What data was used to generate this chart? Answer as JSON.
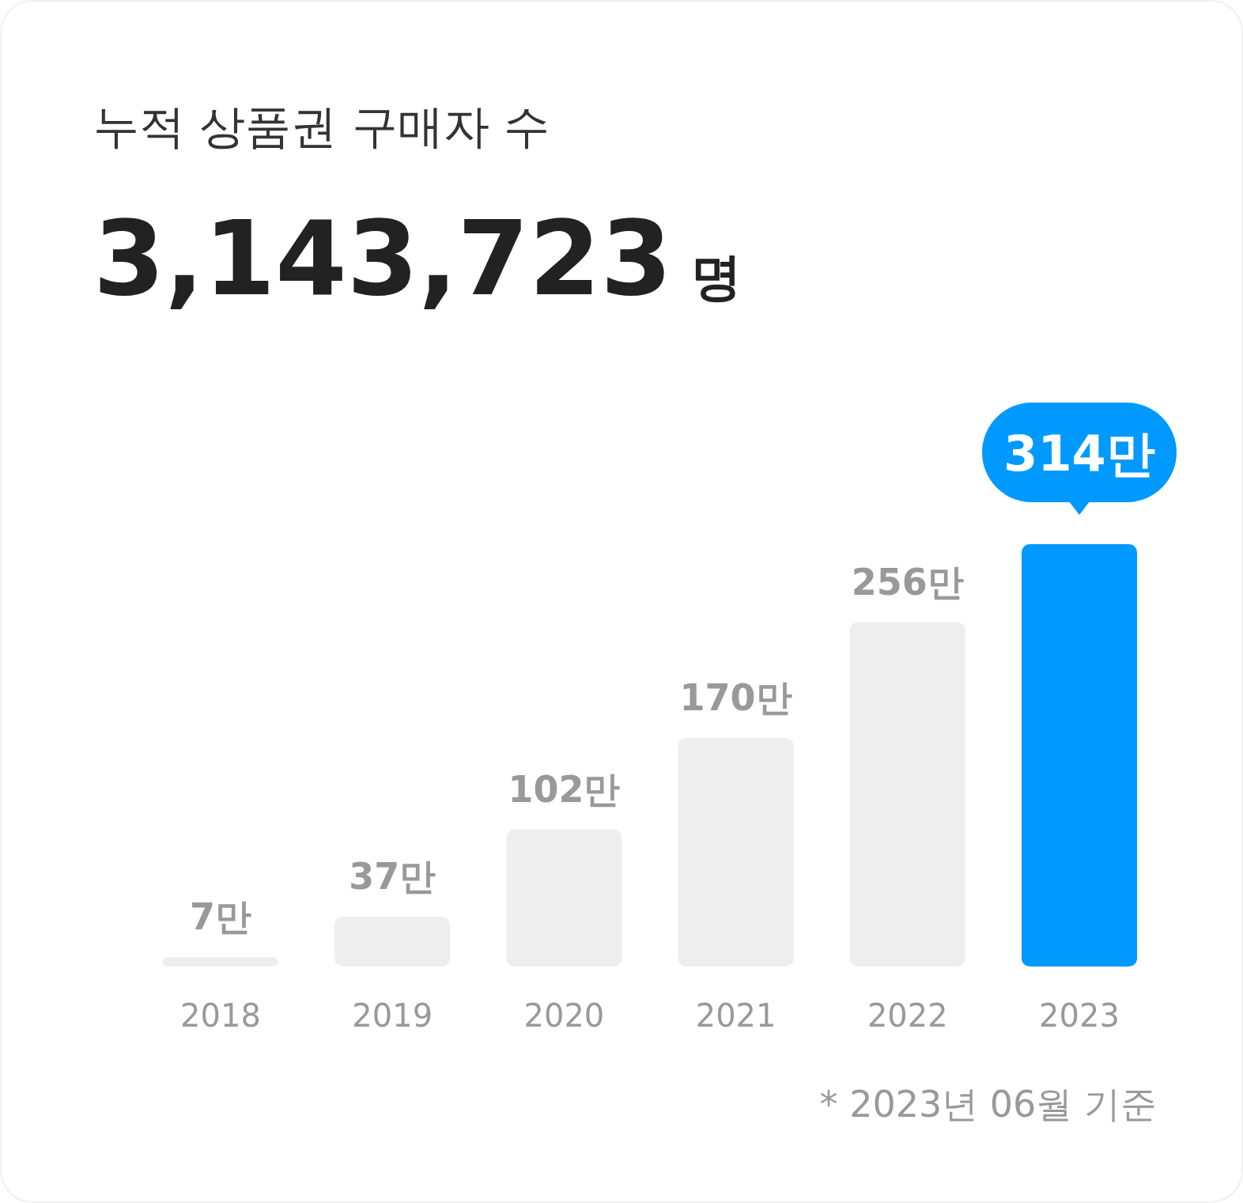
{
  "chart_data": {
    "type": "bar",
    "title": "누적 상품권 구매자 수",
    "subtitle": "3,143,723 명",
    "categories": [
      "2018",
      "2019",
      "2020",
      "2021",
      "2022",
      "2023"
    ],
    "values": [
      7,
      37,
      102,
      170,
      256,
      314
    ],
    "value_labels": [
      "7만",
      "37만",
      "102만",
      "170만",
      "256만",
      "314만"
    ],
    "colors": [
      "#eeeeee",
      "#eeeeee",
      "#eeeeee",
      "#eeeeee",
      "#eeeeee",
      "#0099ff"
    ],
    "annotations": [
      "* 2023년 06월 기준"
    ]
  }
}
